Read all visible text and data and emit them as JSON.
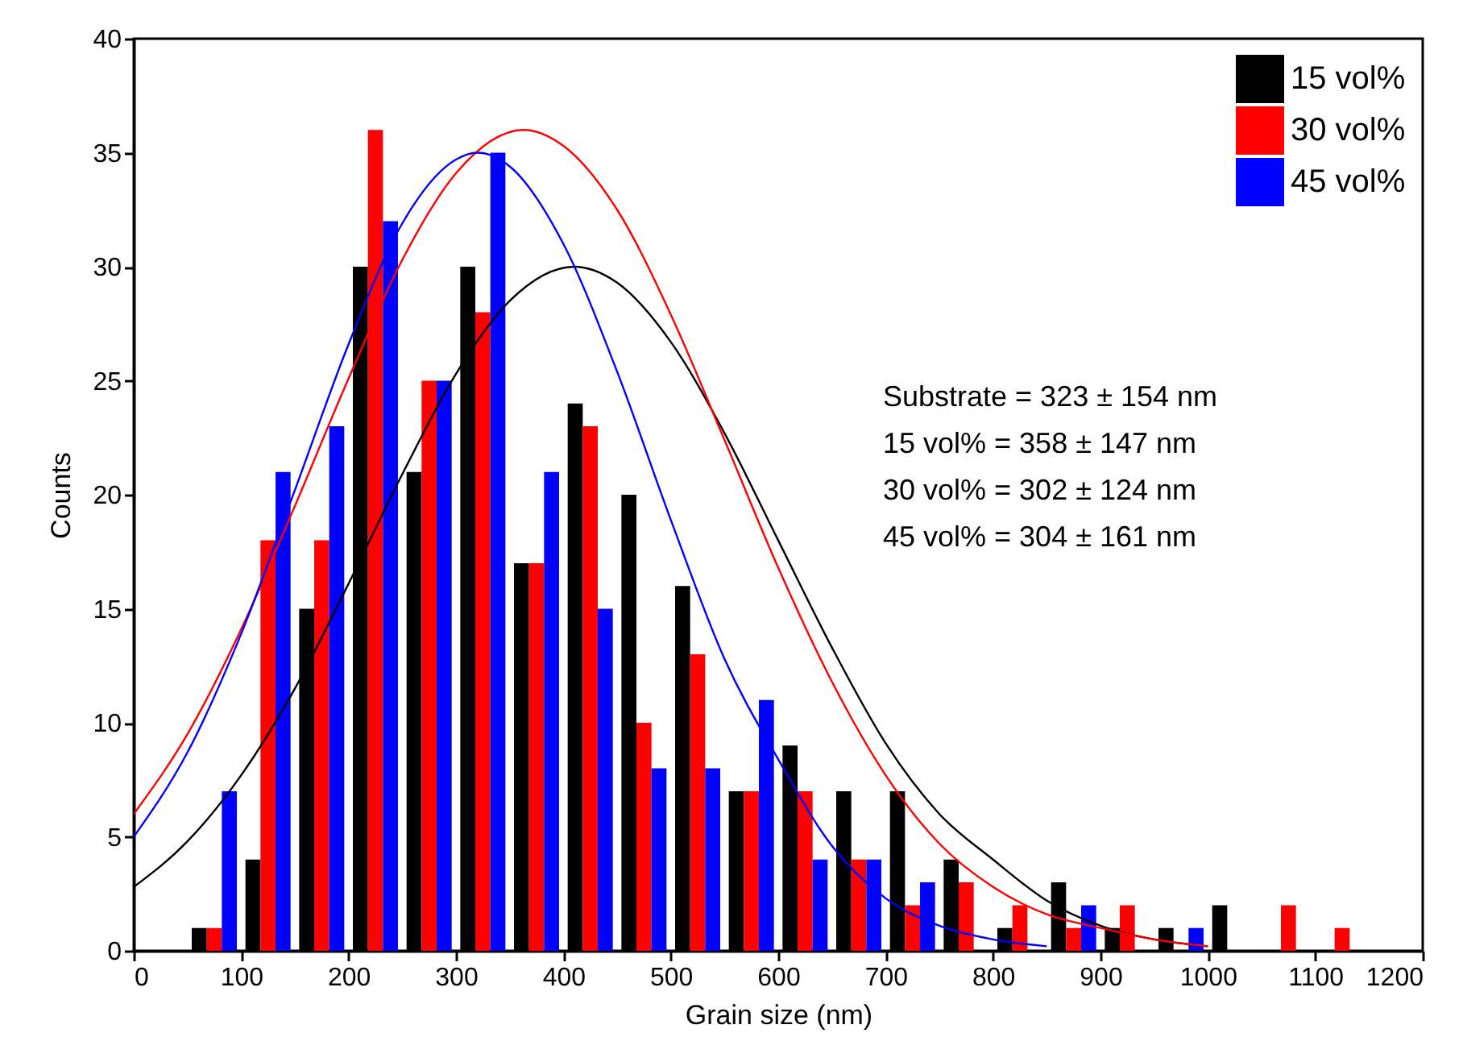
{
  "chart_data": {
    "type": "bar",
    "xlabel": "Grain size (nm)",
    "ylabel": "Counts",
    "x": [
      75,
      125,
      175,
      225,
      275,
      325,
      375,
      425,
      475,
      525,
      575,
      625,
      675,
      725,
      775,
      825,
      875,
      925,
      975,
      1025,
      1075,
      1125
    ],
    "series": [
      {
        "name": "15 vol%",
        "color": "#000000",
        "values": [
          1,
          4,
          15,
          30,
          21,
          30,
          17,
          24,
          20,
          16,
          7,
          9,
          7,
          7,
          4,
          1,
          3,
          1,
          1,
          2,
          0,
          0
        ]
      },
      {
        "name": "30 vol%",
        "color": "#ff0000",
        "values": [
          1,
          18,
          18,
          36,
          25,
          28,
          17,
          23,
          10,
          13,
          7,
          7,
          4,
          2,
          3,
          2,
          1,
          2,
          0,
          0,
          2,
          1
        ]
      },
      {
        "name": "45 vol%",
        "color": "#0000ff",
        "values": [
          7,
          21,
          23,
          32,
          25,
          35,
          21,
          15,
          8,
          8,
          11,
          4,
          4,
          3,
          0,
          0,
          2,
          0,
          1,
          0,
          0,
          0
        ]
      },
      {
        "type": "line",
        "color": "#000000",
        "x": [
          0,
          50,
          100,
          150,
          200,
          250,
          300,
          350,
          410,
          450,
          500,
          550,
          600,
          650,
          700,
          750,
          800,
          850,
          900,
          950,
          1000
        ],
        "values": [
          2.8,
          4.8,
          7.7,
          11.5,
          16.1,
          20.9,
          25.3,
          28.5,
          30,
          29.3,
          26.7,
          22.7,
          18,
          13.3,
          9.1,
          6,
          4,
          2.2,
          1.1,
          0.5,
          0.2
        ]
      },
      {
        "type": "line",
        "color": "#ff0000",
        "x": [
          0,
          50,
          100,
          150,
          200,
          250,
          300,
          363,
          400,
          450,
          500,
          550,
          600,
          650,
          700,
          750,
          800,
          850,
          900,
          950,
          1000
        ],
        "values": [
          6,
          9.5,
          14.1,
          19.5,
          25.1,
          30.3,
          34.1,
          36,
          35.3,
          32.5,
          27.9,
          22.4,
          16.8,
          11.8,
          7.7,
          4.7,
          2.8,
          1.6,
          1,
          0.5,
          0.2
        ]
      },
      {
        "type": "line",
        "color": "#0000ff",
        "x": [
          0,
          50,
          100,
          150,
          200,
          250,
          300,
          320,
          350,
          400,
          450,
          500,
          550,
          600,
          650,
          700,
          750,
          800,
          850
        ],
        "values": [
          5,
          8.7,
          13.9,
          20.2,
          26.6,
          31.9,
          34.7,
          35,
          34.4,
          31,
          25.4,
          18.9,
          12.8,
          8.4,
          4.6,
          2.3,
          1.1,
          0.5,
          0.2
        ]
      }
    ],
    "xlim": [
      0,
      1200
    ],
    "xticks": [
      0,
      100,
      200,
      300,
      400,
      500,
      600,
      700,
      800,
      900,
      1000,
      1100,
      1200
    ],
    "ylim": [
      0,
      40
    ],
    "yticks": [
      0,
      5,
      10,
      15,
      20,
      25,
      30,
      35,
      40
    ],
    "annotations": [
      "Substrate = 323 ± 154 nm",
      "15 vol% = 358 ± 147 nm",
      "30 vol% = 302 ± 124 nm",
      "45 vol% = 304 ± 161 nm"
    ],
    "legend": "top right",
    "grid": false
  }
}
